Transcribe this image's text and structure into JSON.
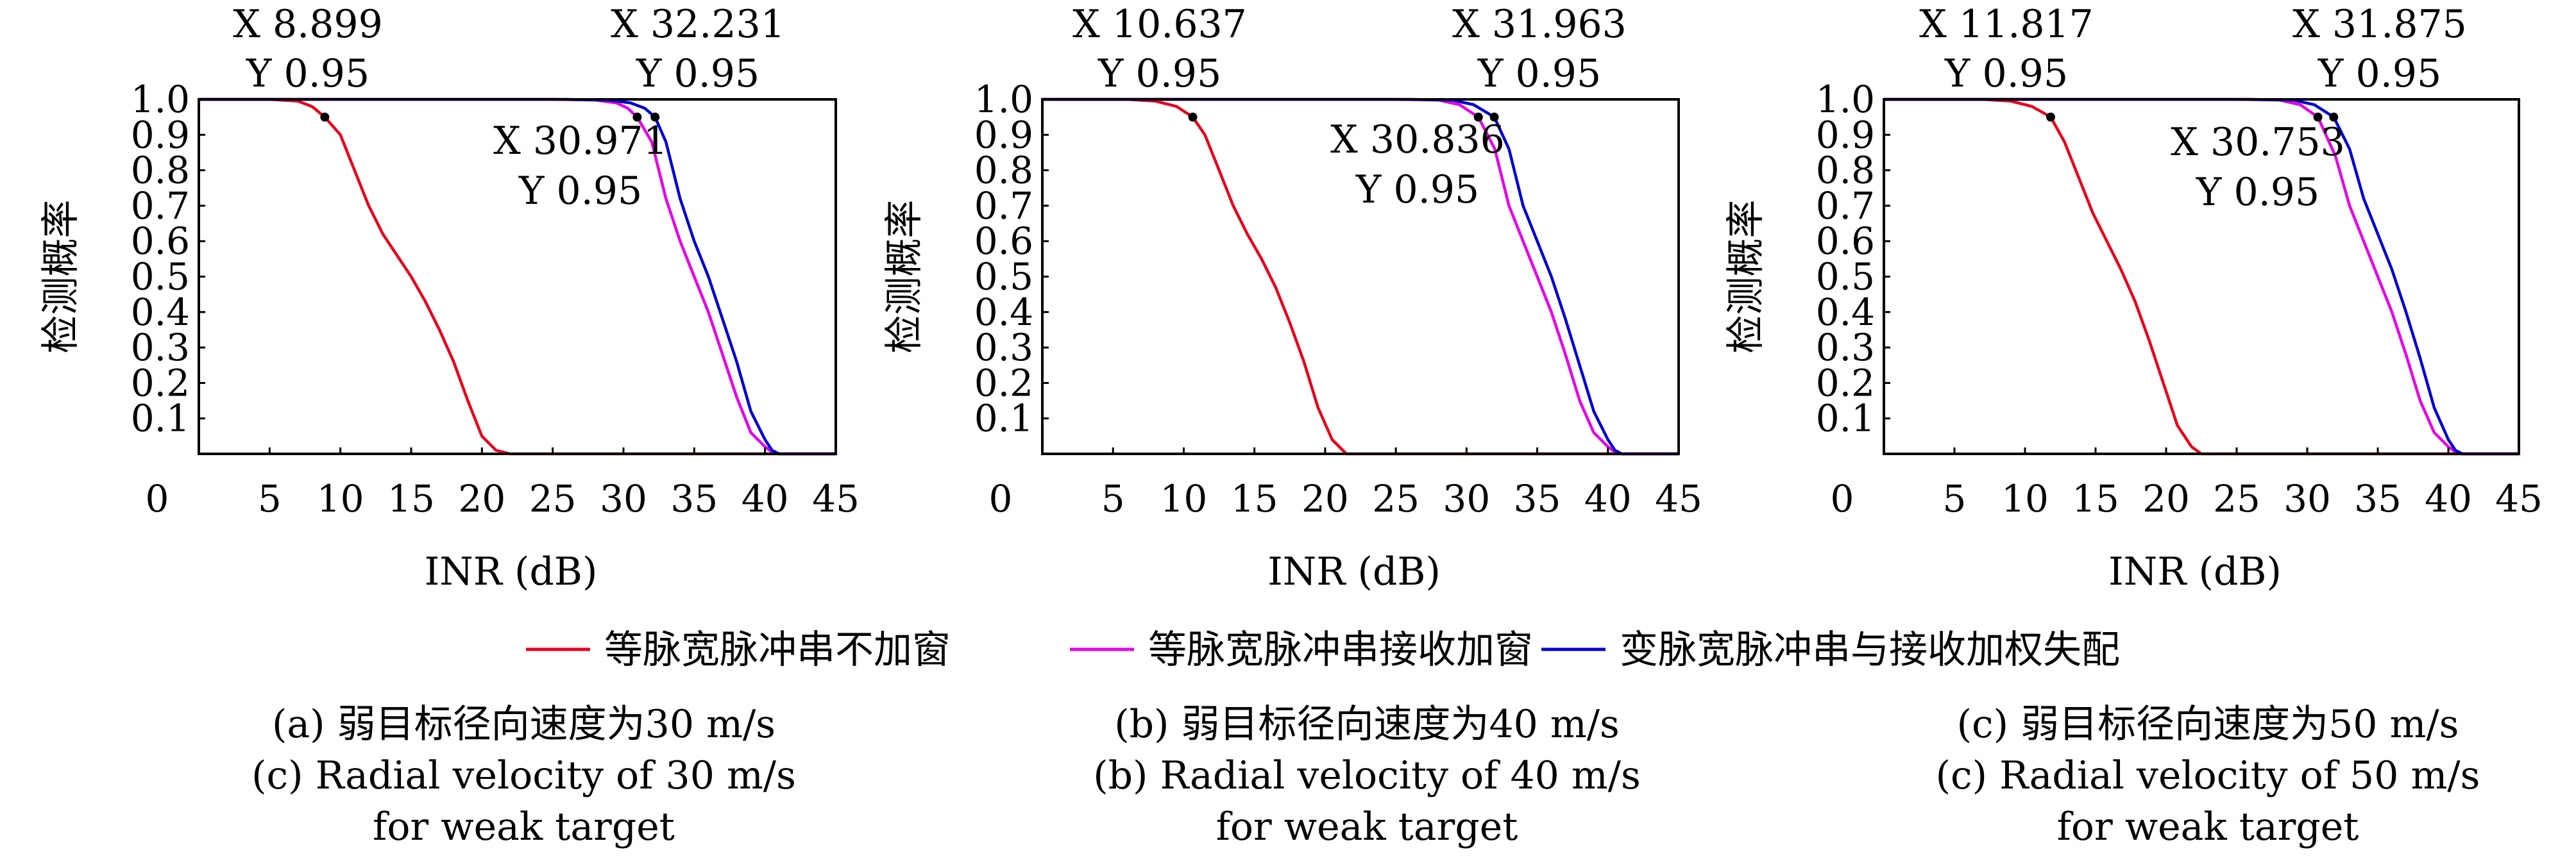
{
  "colors": {
    "series_no_window": "#e8001c",
    "series_receive_window": "#e600e6",
    "series_mismatch": "#0000d6",
    "marker": "#000000",
    "axis": "#000000"
  },
  "legend": [
    {
      "label": "等脉宽脉冲串不加窗",
      "color": "#e8001c"
    },
    {
      "label": "等脉宽脉冲串接收加窗",
      "color": "#e600e6"
    },
    {
      "label": "变脉宽脉冲串与接收加权失配",
      "color": "#0000d6"
    }
  ],
  "chart_data": [
    {
      "type": "line",
      "xlabel": "INR (dB)",
      "ylabel": "检测概率",
      "xlim": [
        0,
        45
      ],
      "ylim": [
        0,
        1
      ],
      "xticks": [
        "0",
        "5",
        "10",
        "15",
        "20",
        "25",
        "30",
        "35",
        "40",
        "45"
      ],
      "yticks": [
        "0.1",
        "0.2",
        "0.3",
        "0.4",
        "0.5",
        "0.6",
        "0.7",
        "0.8",
        "0.9",
        "1.0"
      ],
      "caption": [
        "(a) 弱目标径向速度为30 m/s",
        "(c) Radial velocity of 30 m/s",
        "for weak target"
      ],
      "series": [
        {
          "name": "等脉宽脉冲串不加窗",
          "x": [
            0,
            5,
            7,
            8,
            8.9,
            10,
            11,
            12,
            13,
            14,
            15,
            16,
            17,
            18,
            19,
            20,
            21,
            22,
            45
          ],
          "y": [
            1,
            1,
            0.995,
            0.98,
            0.95,
            0.9,
            0.8,
            0.7,
            0.62,
            0.56,
            0.5,
            0.43,
            0.35,
            0.26,
            0.15,
            0.05,
            0.01,
            0,
            0
          ]
        },
        {
          "name": "等脉宽脉冲串接收加窗",
          "x": [
            0,
            25,
            28,
            29.5,
            30.3,
            30.97,
            32,
            33,
            34,
            35,
            36,
            37,
            38,
            39,
            40,
            40.5,
            41,
            45
          ],
          "y": [
            1,
            1,
            0.998,
            0.99,
            0.975,
            0.95,
            0.88,
            0.72,
            0.6,
            0.5,
            0.4,
            0.28,
            0.16,
            0.06,
            0.02,
            0.005,
            0,
            0
          ]
        },
        {
          "name": "变脉宽脉冲串与接收加权失配",
          "x": [
            0,
            26,
            29,
            30.5,
            31.5,
            32.23,
            33,
            34,
            35,
            36,
            37,
            38,
            39,
            40,
            40.5,
            41,
            45
          ],
          "y": [
            1,
            1,
            0.998,
            0.99,
            0.975,
            0.95,
            0.88,
            0.72,
            0.6,
            0.5,
            0.38,
            0.26,
            0.12,
            0.04,
            0.01,
            0,
            0
          ]
        }
      ],
      "annotations": [
        {
          "x_text": "X 8.899",
          "y_text": "Y 0.95",
          "x": 8.899,
          "y": 0.95
        },
        {
          "x_text": "X 30.971",
          "y_text": "Y 0.95",
          "x": 30.971,
          "y": 0.95
        },
        {
          "x_text": "X 32.231",
          "y_text": "Y 0.95",
          "x": 32.231,
          "y": 0.95
        }
      ]
    },
    {
      "type": "line",
      "xlabel": "INR (dB)",
      "ylabel": "检测概率",
      "xlim": [
        0,
        45
      ],
      "ylim": [
        0,
        1
      ],
      "xticks": [
        "0",
        "5",
        "10",
        "15",
        "20",
        "25",
        "30",
        "35",
        "40",
        "45"
      ],
      "yticks": [
        "0.1",
        "0.2",
        "0.3",
        "0.4",
        "0.5",
        "0.6",
        "0.7",
        "0.8",
        "0.9",
        "1.0"
      ],
      "caption": [
        "(b) 弱目标径向速度为40 m/s",
        "(b) Radial velocity of 40 m/s",
        "for weak target"
      ],
      "series": [
        {
          "name": "等脉宽脉冲串不加窗",
          "x": [
            0,
            6,
            8,
            9.5,
            10.637,
            11.5,
            12.5,
            13.5,
            14.5,
            15.5,
            16.5,
            17.5,
            18.5,
            19.5,
            20.5,
            21.5,
            45
          ],
          "y": [
            1,
            1,
            0.995,
            0.98,
            0.95,
            0.9,
            0.8,
            0.7,
            0.62,
            0.55,
            0.47,
            0.37,
            0.26,
            0.13,
            0.04,
            0,
            0
          ]
        },
        {
          "name": "等脉宽脉冲串接收加窗",
          "x": [
            0,
            25,
            28,
            29.5,
            30.836,
            32,
            33,
            34,
            35,
            36,
            37,
            38,
            39,
            40,
            40.5,
            41,
            45
          ],
          "y": [
            1,
            1,
            0.998,
            0.985,
            0.95,
            0.86,
            0.7,
            0.6,
            0.5,
            0.4,
            0.28,
            0.15,
            0.06,
            0.02,
            0.005,
            0,
            0
          ]
        },
        {
          "name": "变脉宽脉冲串与接收加权失配",
          "x": [
            0,
            26,
            29,
            30.5,
            31.963,
            33,
            34,
            35,
            36,
            37,
            38,
            39,
            40,
            40.5,
            41,
            45
          ],
          "y": [
            1,
            1,
            0.998,
            0.985,
            0.95,
            0.86,
            0.7,
            0.6,
            0.5,
            0.38,
            0.25,
            0.12,
            0.04,
            0.01,
            0,
            0
          ]
        }
      ],
      "annotations": [
        {
          "x_text": "X 10.637",
          "y_text": "Y 0.95",
          "x": 10.637,
          "y": 0.95
        },
        {
          "x_text": "X 30.836",
          "y_text": "Y 0.95",
          "x": 30.836,
          "y": 0.95
        },
        {
          "x_text": "X 31.963",
          "y_text": "Y 0.95",
          "x": 31.963,
          "y": 0.95
        }
      ]
    },
    {
      "type": "line",
      "xlabel": "INR (dB)",
      "ylabel": "检测概率",
      "xlim": [
        0,
        45
      ],
      "ylim": [
        0,
        1
      ],
      "xticks": [
        "0",
        "5",
        "10",
        "15",
        "20",
        "25",
        "30",
        "35",
        "40",
        "45"
      ],
      "yticks": [
        "0.1",
        "0.2",
        "0.3",
        "0.4",
        "0.5",
        "0.6",
        "0.7",
        "0.8",
        "0.9",
        "1.0"
      ],
      "caption": [
        "(c) 弱目标径向速度为50 m/s",
        "(c) Radial velocity of 50 m/s",
        "for weak target"
      ],
      "series": [
        {
          "name": "等脉宽脉冲串不加窗",
          "x": [
            0,
            7,
            9,
            10.5,
            11.817,
            12.8,
            13.8,
            14.8,
            15.8,
            16.8,
            17.8,
            18.8,
            19.8,
            20.8,
            21.8,
            22.5,
            45
          ],
          "y": [
            1,
            1,
            0.995,
            0.98,
            0.95,
            0.88,
            0.78,
            0.68,
            0.6,
            0.52,
            0.43,
            0.32,
            0.2,
            0.08,
            0.02,
            0,
            0
          ]
        },
        {
          "name": "等脉宽脉冲串接收加窗",
          "x": [
            0,
            25,
            28,
            29.5,
            30.753,
            32,
            33,
            34,
            35,
            36,
            37,
            38,
            39,
            40,
            40.5,
            41,
            45
          ],
          "y": [
            1,
            1,
            0.998,
            0.985,
            0.95,
            0.84,
            0.7,
            0.6,
            0.5,
            0.4,
            0.28,
            0.15,
            0.06,
            0.02,
            0.005,
            0,
            0
          ]
        },
        {
          "name": "变脉宽脉冲串与接收加权失配",
          "x": [
            0,
            26,
            29,
            30.5,
            31.875,
            33,
            34,
            35,
            36,
            37,
            38,
            39,
            40,
            40.5,
            41,
            45
          ],
          "y": [
            1,
            1,
            0.998,
            0.985,
            0.95,
            0.86,
            0.72,
            0.62,
            0.52,
            0.4,
            0.27,
            0.13,
            0.04,
            0.01,
            0,
            0
          ]
        }
      ],
      "annotations": [
        {
          "x_text": "X 11.817",
          "y_text": "Y 0.95",
          "x": 11.817,
          "y": 0.95
        },
        {
          "x_text": "X 30.753",
          "y_text": "Y 0.95",
          "x": 30.753,
          "y": 0.95
        },
        {
          "x_text": "X 31.875",
          "y_text": "Y 0.95",
          "x": 31.875,
          "y": 0.95
        }
      ]
    }
  ]
}
